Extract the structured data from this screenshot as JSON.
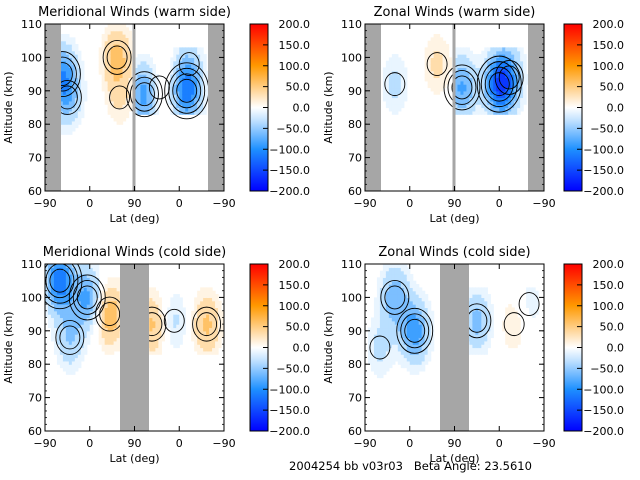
{
  "footer": {
    "run_id": "2004254 bb v03r03",
    "beta_label": "Beta Angle:",
    "beta_value": "23.5610"
  },
  "chart_data": [
    {
      "type": "heatmap",
      "subtype": "filled-contour",
      "title": "Meridional Winds (warm side)",
      "xlabel": "Lat (deg)",
      "ylabel": "Altitude (km)",
      "x_tick_labels": [
        "-90",
        "0",
        "90",
        "0",
        "-90"
      ],
      "y_ticks": [
        60,
        70,
        80,
        90,
        100,
        110
      ],
      "ylim": [
        60,
        110
      ],
      "no_data_bands_lat_index": [
        [
          -90,
          -65
        ],
        [
          80,
          90
        ],
        [
          -65,
          -90
        ]
      ],
      "colorbar": {
        "min": -200,
        "max": 200,
        "ticks": [
          "200.0",
          "150.0",
          "100.0",
          "50.0",
          "0.0",
          "-50.0",
          "-100.0",
          "-150.0",
          "-200.0"
        ]
      },
      "features": [
        {
          "half": "left",
          "lat": -55,
          "alt": 95,
          "value": -80
        },
        {
          "half": "left",
          "lat": -45,
          "alt": 88,
          "value": -50
        },
        {
          "half": "left",
          "lat": 55,
          "alt": 100,
          "value": 60
        },
        {
          "half": "left",
          "lat": 60,
          "alt": 88,
          "value": 25
        },
        {
          "half": "right",
          "lat": 70,
          "alt": 89,
          "value": -90
        },
        {
          "half": "right",
          "lat": 40,
          "alt": 91,
          "value": 20
        },
        {
          "half": "right",
          "lat": -15,
          "alt": 90,
          "value": -110
        },
        {
          "half": "right",
          "lat": -20,
          "alt": 98,
          "value": -25
        }
      ]
    },
    {
      "type": "heatmap",
      "subtype": "filled-contour",
      "title": "Zonal Winds (warm side)",
      "xlabel": "Lat (deg)",
      "ylabel": "Altitude (km)",
      "x_tick_labels": [
        "-90",
        "0",
        "90",
        "0",
        "-90"
      ],
      "y_ticks": [
        60,
        70,
        80,
        90,
        100,
        110
      ],
      "ylim": [
        60,
        110
      ],
      "colorbar": {
        "min": -200,
        "max": 200,
        "ticks": [
          "200.0",
          "150.0",
          "100.0",
          "50.0",
          "0.0",
          "-50.0",
          "-100.0",
          "-150.0",
          "-200.0"
        ]
      },
      "features": [
        {
          "half": "left",
          "lat": -30,
          "alt": 92,
          "value": -30
        },
        {
          "half": "left",
          "lat": 55,
          "alt": 98,
          "value": 30
        },
        {
          "half": "right",
          "lat": 75,
          "alt": 91,
          "value": -80
        },
        {
          "half": "right",
          "lat": 0,
          "alt": 92,
          "value": -130
        },
        {
          "half": "right",
          "lat": -20,
          "alt": 94,
          "value": -60
        }
      ]
    },
    {
      "type": "heatmap",
      "subtype": "filled-contour",
      "title": "Meridional Winds (cold side)",
      "xlabel": "Lat (deg)",
      "ylabel": "Altitude (km)",
      "x_tick_labels": [
        "-90",
        "0",
        "90",
        "0",
        "-90"
      ],
      "y_ticks": [
        60,
        70,
        80,
        90,
        100,
        110
      ],
      "ylim": [
        60,
        110
      ],
      "colorbar": {
        "min": -200,
        "max": 200,
        "ticks": [
          "200.0",
          "150.0",
          "100.0",
          "50.0",
          "0.0",
          "-50.0",
          "-100.0",
          "-150.0",
          "-200.0"
        ]
      },
      "features": [
        {
          "half": "left",
          "lat": -60,
          "alt": 105,
          "value": -120
        },
        {
          "half": "left",
          "lat": -5,
          "alt": 100,
          "value": -80
        },
        {
          "half": "left",
          "lat": -40,
          "alt": 88,
          "value": -50
        },
        {
          "half": "left",
          "lat": 40,
          "alt": 95,
          "value": 70
        },
        {
          "half": "right",
          "lat": 55,
          "alt": 92,
          "value": 55
        },
        {
          "half": "right",
          "lat": 10,
          "alt": 93,
          "value": -30
        },
        {
          "half": "right",
          "lat": -55,
          "alt": 92,
          "value": 55
        }
      ]
    },
    {
      "type": "heatmap",
      "subtype": "filled-contour",
      "title": "Zonal Winds (cold side)",
      "xlabel": "Lat (deg)",
      "ylabel": "Altitude (km)",
      "x_tick_labels": [
        "-90",
        "0",
        "90",
        "0",
        "-90"
      ],
      "y_ticks": [
        60,
        70,
        80,
        90,
        100,
        110
      ],
      "ylim": [
        60,
        110
      ],
      "colorbar": {
        "min": -200,
        "max": 200,
        "ticks": [
          "200.0",
          "150.0",
          "100.0",
          "50.0",
          "0.0",
          "-50.0",
          "-100.0",
          "-150.0",
          "-200.0"
        ]
      },
      "features": [
        {
          "half": "left",
          "lat": -30,
          "alt": 100,
          "value": -70
        },
        {
          "half": "left",
          "lat": 10,
          "alt": 90,
          "value": -90
        },
        {
          "half": "left",
          "lat": -60,
          "alt": 85,
          "value": -30
        },
        {
          "half": "right",
          "lat": 45,
          "alt": 93,
          "value": -60
        },
        {
          "half": "right",
          "lat": -30,
          "alt": 92,
          "value": 25
        },
        {
          "half": "right",
          "lat": -60,
          "alt": 98,
          "value": -20
        }
      ]
    }
  ]
}
